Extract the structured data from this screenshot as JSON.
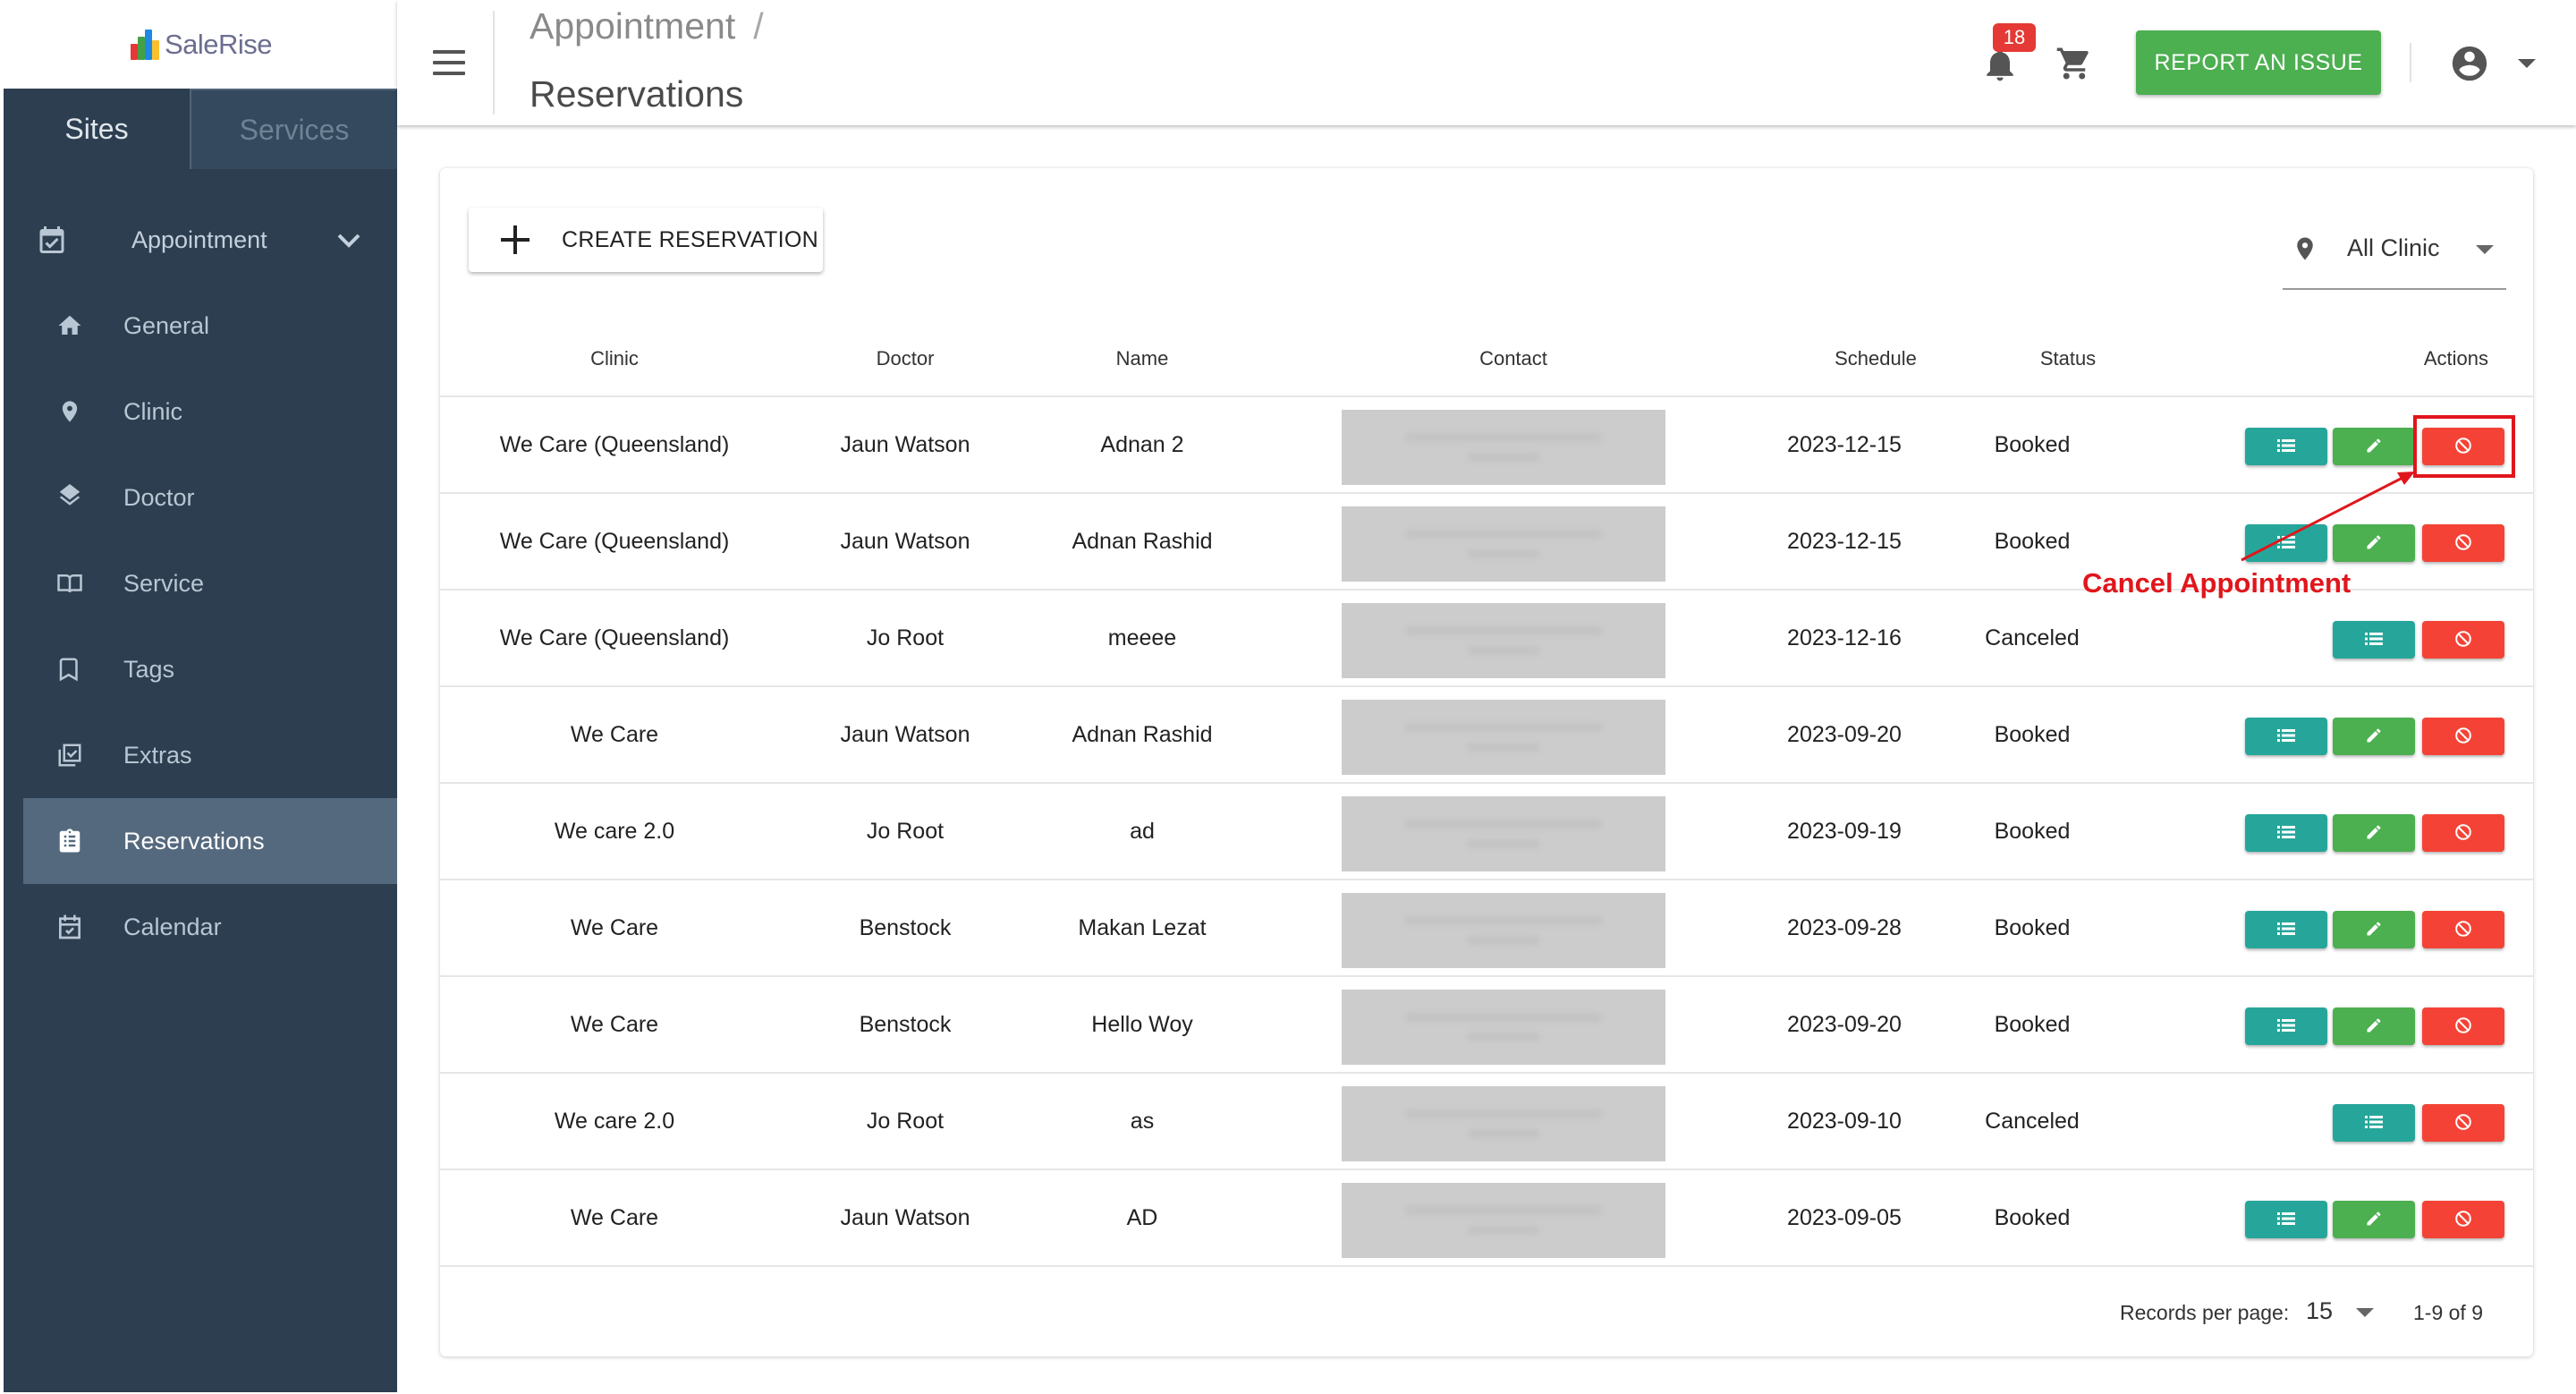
{
  "brand": {
    "logo_text": "SaleRise"
  },
  "sidebar": {
    "tabs": [
      {
        "label": "Sites"
      },
      {
        "label": "Services"
      }
    ],
    "parent": {
      "label": "Appointment"
    },
    "items": [
      {
        "label": "General",
        "icon": "home-icon"
      },
      {
        "label": "Clinic",
        "icon": "map-pin-icon"
      },
      {
        "label": "Doctor",
        "icon": "layers-icon"
      },
      {
        "label": "Service",
        "icon": "book-open-icon"
      },
      {
        "label": "Tags",
        "icon": "bookmark-icon"
      },
      {
        "label": "Extras",
        "icon": "checklist-icon"
      },
      {
        "label": "Reservations",
        "icon": "clipboard-icon",
        "active": true
      },
      {
        "label": "Calendar",
        "icon": "calendar-check-icon"
      }
    ]
  },
  "header": {
    "breadcrumb": "Appointment",
    "breadcrumb_sep": "/",
    "title": "Reservations",
    "notifications": "18",
    "report_button": "REPORT AN ISSUE"
  },
  "toolbar": {
    "create_label": "CREATE RESERVATION",
    "clinic_filter": "All Clinic"
  },
  "table": {
    "headers": {
      "clinic": "Clinic",
      "doctor": "Doctor",
      "name": "Name",
      "contact": "Contact",
      "schedule": "Schedule",
      "status": "Status",
      "actions": "Actions"
    },
    "rows": [
      {
        "clinic": "We Care (Queensland)",
        "doctor": "Jaun Watson",
        "name": "Adnan 2",
        "schedule": "2023-12-15",
        "status": "Booked"
      },
      {
        "clinic": "We Care (Queensland)",
        "doctor": "Jaun Watson",
        "name": "Adnan Rashid",
        "schedule": "2023-12-15",
        "status": "Booked"
      },
      {
        "clinic": "We Care (Queensland)",
        "doctor": "Jo Root",
        "name": "meeee",
        "schedule": "2023-12-16",
        "status": "Canceled"
      },
      {
        "clinic": "We Care",
        "doctor": "Jaun Watson",
        "name": "Adnan Rashid",
        "schedule": "2023-09-20",
        "status": "Booked"
      },
      {
        "clinic": "We care 2.0",
        "doctor": "Jo Root",
        "name": "ad",
        "schedule": "2023-09-19",
        "status": "Booked"
      },
      {
        "clinic": "We Care",
        "doctor": "Benstock",
        "name": "Makan Lezat",
        "schedule": "2023-09-28",
        "status": "Booked"
      },
      {
        "clinic": "We Care",
        "doctor": "Benstock",
        "name": "Hello Woy",
        "schedule": "2023-09-20",
        "status": "Booked"
      },
      {
        "clinic": "We care 2.0",
        "doctor": "Jo Root",
        "name": "as",
        "schedule": "2023-09-10",
        "status": "Canceled"
      },
      {
        "clinic": "We Care",
        "doctor": "Jaun Watson",
        "name": "AD",
        "schedule": "2023-09-05",
        "status": "Booked"
      }
    ]
  },
  "pagination": {
    "records_label": "Records per page:",
    "per_page": "15",
    "range": "1-9 of 9"
  },
  "annotation": {
    "label": "Cancel Appointment"
  },
  "colors": {
    "sidebar": "#2c3e50",
    "active_item": "#55697e",
    "view": "#26a69a",
    "edit": "#4caf50",
    "cancel": "#f44336",
    "report": "#4caf50",
    "annotation": "#e0161c",
    "badge": "#e53935"
  }
}
